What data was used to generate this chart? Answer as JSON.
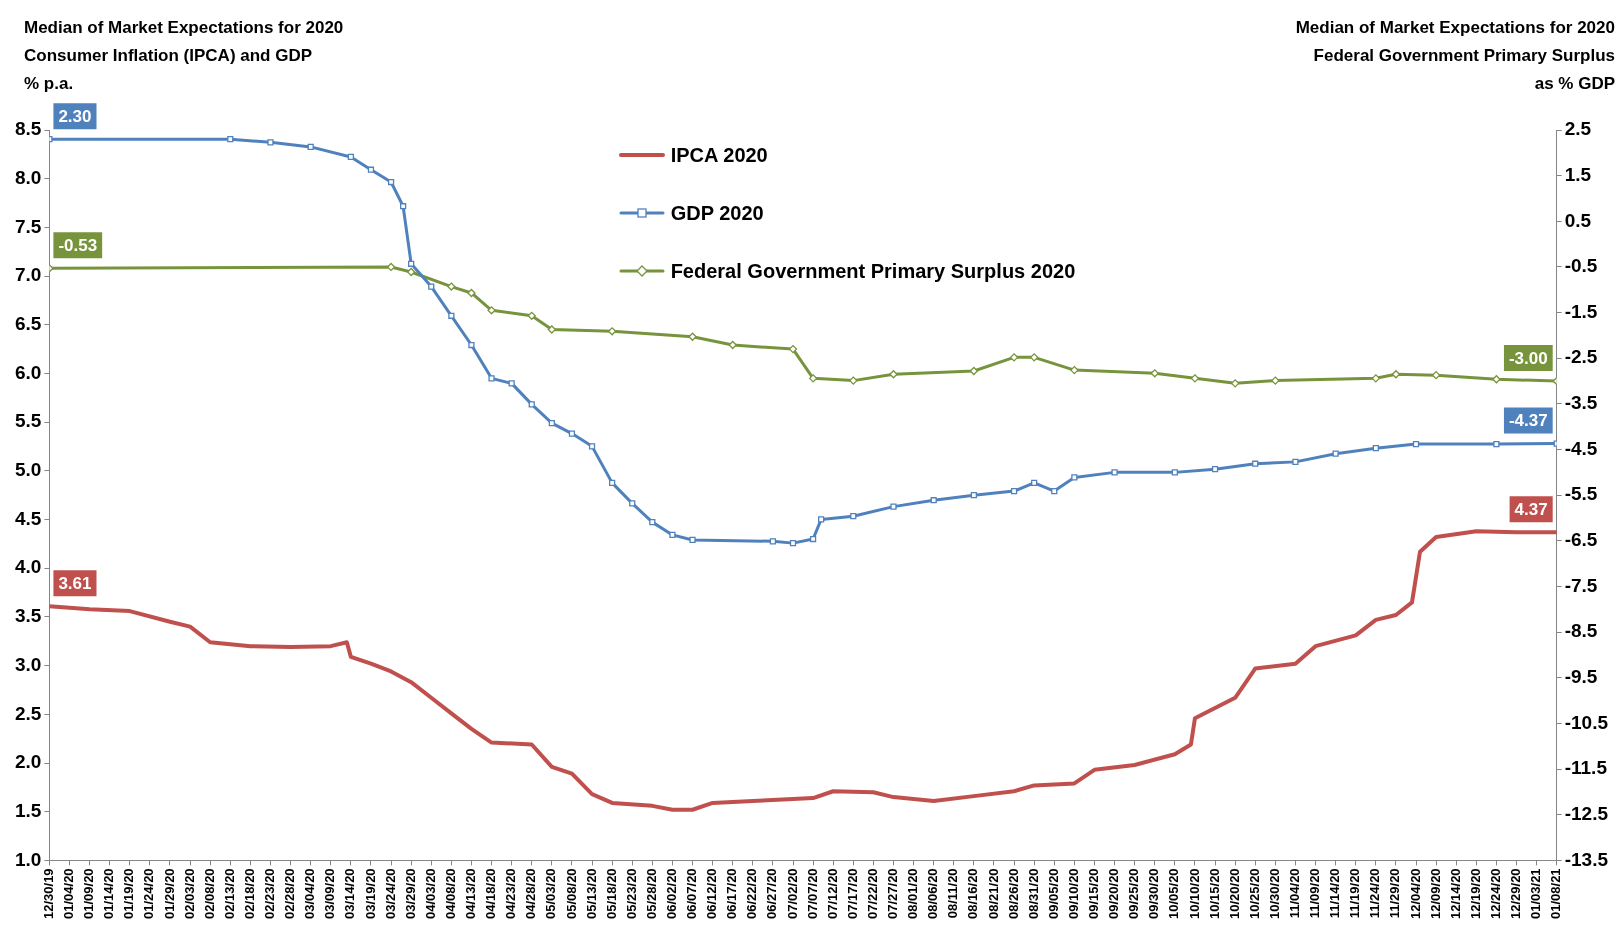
{
  "chart_data": {
    "type": "line",
    "ylabel": "Median of Market Expectations for 2020\nConsumer Inflation (IPCA) and GDP\n% p.a.",
    "y2label": "Median of Market Expectations for 2020\nFederal Government Primary Surplus\nas % GDP",
    "legend": "top",
    "grid": false,
    "xlim": [
      "2019-12-30",
      "2021-01-08"
    ],
    "xticks": [
      {
        "value": "2019-12-30",
        "label": "12/30/19"
      },
      {
        "value": "2020-01-04",
        "label": "01/04/20"
      },
      {
        "value": "2020-01-09",
        "label": "01/09/20"
      },
      {
        "value": "2020-01-14",
        "label": "01/14/20"
      },
      {
        "value": "2020-01-19",
        "label": "01/19/20"
      },
      {
        "value": "2020-01-24",
        "label": "01/24/20"
      },
      {
        "value": "2020-01-29",
        "label": "01/29/20"
      },
      {
        "value": "2020-02-03",
        "label": "02/03/20"
      },
      {
        "value": "2020-02-08",
        "label": "02/08/20"
      },
      {
        "value": "2020-02-13",
        "label": "02/13/20"
      },
      {
        "value": "2020-02-18",
        "label": "02/18/20"
      },
      {
        "value": "2020-02-23",
        "label": "02/23/20"
      },
      {
        "value": "2020-02-28",
        "label": "02/28/20"
      },
      {
        "value": "2020-03-04",
        "label": "03/04/20"
      },
      {
        "value": "2020-03-09",
        "label": "03/09/20"
      },
      {
        "value": "2020-03-14",
        "label": "03/14/20"
      },
      {
        "value": "2020-03-19",
        "label": "03/19/20"
      },
      {
        "value": "2020-03-24",
        "label": "03/24/20"
      },
      {
        "value": "2020-03-29",
        "label": "03/29/20"
      },
      {
        "value": "2020-04-03",
        "label": "04/03/20"
      },
      {
        "value": "2020-04-08",
        "label": "04/08/20"
      },
      {
        "value": "2020-04-13",
        "label": "04/13/20"
      },
      {
        "value": "2020-04-18",
        "label": "04/18/20"
      },
      {
        "value": "2020-04-23",
        "label": "04/23/20"
      },
      {
        "value": "2020-04-28",
        "label": "04/28/20"
      },
      {
        "value": "2020-05-03",
        "label": "05/03/20"
      },
      {
        "value": "2020-05-08",
        "label": "05/08/20"
      },
      {
        "value": "2020-05-13",
        "label": "05/13/20"
      },
      {
        "value": "2020-05-18",
        "label": "05/18/20"
      },
      {
        "value": "2020-05-23",
        "label": "05/23/20"
      },
      {
        "value": "2020-05-28",
        "label": "05/28/20"
      },
      {
        "value": "2020-06-02",
        "label": "06/02/20"
      },
      {
        "value": "2020-06-07",
        "label": "06/07/20"
      },
      {
        "value": "2020-06-12",
        "label": "06/12/20"
      },
      {
        "value": "2020-06-17",
        "label": "06/17/20"
      },
      {
        "value": "2020-06-22",
        "label": "06/22/20"
      },
      {
        "value": "2020-06-27",
        "label": "06/27/20"
      },
      {
        "value": "2020-07-02",
        "label": "07/02/20"
      },
      {
        "value": "2020-07-07",
        "label": "07/07/20"
      },
      {
        "value": "2020-07-12",
        "label": "07/12/20"
      },
      {
        "value": "2020-07-17",
        "label": "07/17/20"
      },
      {
        "value": "2020-07-22",
        "label": "07/22/20"
      },
      {
        "value": "2020-07-27",
        "label": "07/27/20"
      },
      {
        "value": "2020-08-01",
        "label": "08/01/20"
      },
      {
        "value": "2020-08-06",
        "label": "08/06/20"
      },
      {
        "value": "2020-08-11",
        "label": "08/11/20"
      },
      {
        "value": "2020-08-16",
        "label": "08/16/20"
      },
      {
        "value": "2020-08-21",
        "label": "08/21/20"
      },
      {
        "value": "2020-08-26",
        "label": "08/26/20"
      },
      {
        "value": "2020-08-31",
        "label": "08/31/20"
      },
      {
        "value": "2020-09-05",
        "label": "09/05/20"
      },
      {
        "value": "2020-09-10",
        "label": "09/10/20"
      },
      {
        "value": "2020-09-15",
        "label": "09/15/20"
      },
      {
        "value": "2020-09-20",
        "label": "09/20/20"
      },
      {
        "value": "2020-09-25",
        "label": "09/25/20"
      },
      {
        "value": "2020-09-30",
        "label": "09/30/20"
      },
      {
        "value": "2020-10-05",
        "label": "10/05/20"
      },
      {
        "value": "2020-10-10",
        "label": "10/10/20"
      },
      {
        "value": "2020-10-15",
        "label": "10/15/20"
      },
      {
        "value": "2020-10-20",
        "label": "10/20/20"
      },
      {
        "value": "2020-10-25",
        "label": "10/25/20"
      },
      {
        "value": "2020-10-30",
        "label": "10/30/20"
      },
      {
        "value": "2020-11-04",
        "label": "11/04/20"
      },
      {
        "value": "2020-11-09",
        "label": "11/09/20"
      },
      {
        "value": "2020-11-14",
        "label": "11/14/20"
      },
      {
        "value": "2020-11-19",
        "label": "11/19/20"
      },
      {
        "value": "2020-11-24",
        "label": "11/24/20"
      },
      {
        "value": "2020-11-29",
        "label": "11/29/20"
      },
      {
        "value": "2020-12-04",
        "label": "12/04/20"
      },
      {
        "value": "2020-12-09",
        "label": "12/09/20"
      },
      {
        "value": "2020-12-14",
        "label": "12/14/20"
      },
      {
        "value": "2020-12-19",
        "label": "12/19/20"
      },
      {
        "value": "2020-12-24",
        "label": "12/24/20"
      },
      {
        "value": "2020-12-29",
        "label": "12/29/20"
      },
      {
        "value": "2021-01-03",
        "label": "01/03/21"
      },
      {
        "value": "2021-01-08",
        "label": "01/08/21"
      }
    ],
    "ylim": [
      1.0,
      8.5
    ],
    "yticks": [
      {
        "value": 1,
        "label": "1.0"
      },
      1.5,
      {
        "value": 2,
        "label": "2.0"
      },
      2.5,
      {
        "value": 3,
        "label": "3.0"
      },
      3.5,
      {
        "value": 4,
        "label": "4.0"
      },
      4.5,
      {
        "value": 5,
        "label": "5.0"
      },
      5.5,
      {
        "value": 6,
        "label": "6.0"
      },
      6.5,
      {
        "value": 7,
        "label": "7.0"
      },
      7.5,
      {
        "value": 8,
        "label": "8.0"
      },
      8.5
    ],
    "y2lim": [
      -13.5,
      2.5
    ],
    "y2ticks": [
      -13.5,
      -12.5,
      -11.5,
      -10.5,
      -9.5,
      -8.5,
      -7.5,
      -6.5,
      -5.5,
      -4.5,
      -3.5,
      -2.5,
      -1.5,
      -0.5,
      0.5,
      1.5,
      2.5
    ],
    "series": [
      {
        "name": "IPCA 2020",
        "color": "#c0504d",
        "marker": "none",
        "x": [
          "2019-12-30",
          "2020-01-09",
          "2020-01-19",
          "2020-01-29",
          "2020-02-03",
          "2020-02-08",
          "2020-02-18",
          "2020-02-28",
          "2020-03-09",
          "2020-03-13",
          "2020-03-14",
          "2020-03-19",
          "2020-03-24",
          "2020-03-29",
          "2020-04-03",
          "2020-04-08",
          "2020-04-13",
          "2020-04-18",
          "2020-04-28",
          "2020-05-03",
          "2020-05-08",
          "2020-05-13",
          "2020-05-18",
          "2020-05-28",
          "2020-06-02",
          "2020-06-07",
          "2020-06-12",
          "2020-06-22",
          "2020-07-02",
          "2020-07-07",
          "2020-07-12",
          "2020-07-22",
          "2020-07-27",
          "2020-08-06",
          "2020-08-16",
          "2020-08-26",
          "2020-08-31",
          "2020-09-10",
          "2020-09-15",
          "2020-09-25",
          "2020-10-05",
          "2020-10-09",
          "2020-10-10",
          "2020-10-20",
          "2020-10-25",
          "2020-11-04",
          "2020-11-09",
          "2020-11-19",
          "2020-11-24",
          "2020-11-29",
          "2020-12-03",
          "2020-12-05",
          "2020-12-09",
          "2020-12-19",
          "2020-12-29",
          "2021-01-08"
        ],
        "values": [
          3.61,
          3.58,
          3.56,
          3.45,
          3.4,
          3.24,
          3.2,
          3.19,
          3.2,
          3.24,
          3.09,
          3.02,
          2.94,
          2.83,
          2.67,
          2.51,
          2.35,
          2.21,
          2.19,
          1.96,
          1.89,
          1.68,
          1.59,
          1.56,
          1.52,
          1.52,
          1.59,
          1.61,
          1.63,
          1.64,
          1.71,
          1.7,
          1.65,
          1.61,
          1.66,
          1.71,
          1.77,
          1.79,
          1.93,
          1.98,
          2.09,
          2.19,
          2.46,
          2.67,
          2.97,
          3.02,
          3.2,
          3.31,
          3.47,
          3.52,
          3.65,
          4.17,
          4.32,
          4.38,
          4.37,
          4.37
        ],
        "value_labels": [
          "3.61",
          null,
          null,
          null,
          null,
          null,
          null,
          null,
          null,
          null,
          null,
          null,
          null,
          null,
          null,
          null,
          null,
          null,
          null,
          null,
          null,
          null,
          null,
          null,
          null,
          null,
          null,
          null,
          null,
          null,
          null,
          null,
          null,
          null,
          null,
          null,
          null,
          null,
          null,
          null,
          null,
          null,
          null,
          null,
          null,
          null,
          null,
          null,
          null,
          null,
          null,
          null,
          null,
          null,
          null,
          "4.37"
        ]
      },
      {
        "name": "GDP 2020",
        "color": "#4f81bd",
        "marker": "square",
        "axis": "y2",
        "x": [
          "2019-12-30",
          "2020-02-13",
          "2020-02-23",
          "2020-03-04",
          "2020-03-14",
          "2020-03-19",
          "2020-03-24",
          "2020-03-27",
          "2020-03-29",
          "2020-04-03",
          "2020-04-08",
          "2020-04-13",
          "2020-04-18",
          "2020-04-23",
          "2020-04-28",
          "2020-05-03",
          "2020-05-08",
          "2020-05-13",
          "2020-05-18",
          "2020-05-23",
          "2020-05-28",
          "2020-06-02",
          "2020-06-07",
          "2020-06-27",
          "2020-07-02",
          "2020-07-07",
          "2020-07-09",
          "2020-07-17",
          "2020-07-27",
          "2020-08-06",
          "2020-08-16",
          "2020-08-26",
          "2020-08-31",
          "2020-09-05",
          "2020-09-10",
          "2020-09-20",
          "2020-10-05",
          "2020-10-15",
          "2020-10-25",
          "2020-11-04",
          "2020-11-14",
          "2020-11-24",
          "2020-12-04",
          "2020-12-24",
          "2021-01-08"
        ],
        "values": [
          2.3,
          2.3,
          2.23,
          2.13,
          1.91,
          1.63,
          1.36,
          0.83,
          -0.43,
          -0.93,
          -1.57,
          -2.21,
          -2.94,
          -3.05,
          -3.51,
          -3.92,
          -4.15,
          -4.43,
          -5.23,
          -5.68,
          -6.09,
          -6.37,
          -6.48,
          -6.51,
          -6.55,
          -6.46,
          -6.03,
          -5.96,
          -5.75,
          -5.61,
          -5.5,
          -5.41,
          -5.23,
          -5.41,
          -5.11,
          -5.0,
          -5.0,
          -4.93,
          -4.81,
          -4.77,
          -4.59,
          -4.47,
          -4.38,
          -4.38,
          -4.37
        ],
        "value_labels": [
          "2.30",
          null,
          null,
          null,
          null,
          null,
          null,
          null,
          null,
          null,
          null,
          null,
          null,
          null,
          null,
          null,
          null,
          null,
          null,
          null,
          null,
          null,
          null,
          null,
          null,
          null,
          null,
          null,
          null,
          null,
          null,
          null,
          null,
          null,
          null,
          null,
          null,
          null,
          null,
          null,
          null,
          null,
          null,
          null,
          "-4.37"
        ]
      },
      {
        "name": "Federal Government Primary Surplus 2020",
        "color": "#77933c",
        "marker": "diamond",
        "axis": "y2",
        "x": [
          "2019-12-30",
          "2020-03-24",
          "2020-03-29",
          "2020-04-08",
          "2020-04-13",
          "2020-04-18",
          "2020-04-28",
          "2020-05-03",
          "2020-05-18",
          "2020-06-07",
          "2020-06-17",
          "2020-07-02",
          "2020-07-07",
          "2020-07-17",
          "2020-07-27",
          "2020-08-16",
          "2020-08-26",
          "2020-08-31",
          "2020-09-10",
          "2020-09-30",
          "2020-10-10",
          "2020-10-20",
          "2020-10-30",
          "2020-11-24",
          "2020-11-29",
          "2020-12-09",
          "2020-12-24",
          "2021-01-08"
        ],
        "values": [
          -0.53,
          -0.5,
          -0.61,
          -0.93,
          -1.07,
          -1.45,
          -1.57,
          -1.87,
          -1.91,
          -2.03,
          -2.21,
          -2.3,
          -2.94,
          -2.99,
          -2.85,
          -2.78,
          -2.48,
          -2.48,
          -2.76,
          -2.83,
          -2.94,
          -3.05,
          -2.99,
          -2.94,
          -2.85,
          -2.87,
          -2.96,
          -3.0
        ],
        "value_labels": [
          "-0.53",
          null,
          null,
          null,
          null,
          null,
          null,
          null,
          null,
          null,
          null,
          null,
          null,
          null,
          null,
          null,
          null,
          null,
          null,
          null,
          null,
          null,
          null,
          null,
          null,
          null,
          null,
          "-3.00"
        ]
      }
    ]
  }
}
